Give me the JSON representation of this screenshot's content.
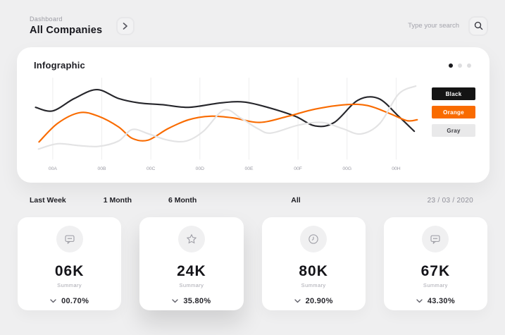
{
  "header": {
    "breadcrumb": "Dashboard",
    "title": "All Companies",
    "search_placeholder": "Type your search"
  },
  "infographic": {
    "title": "Infographic",
    "active_dot": 0,
    "legend": [
      {
        "label": "Black",
        "bg": "#141414",
        "text": "#ffffff"
      },
      {
        "label": "Orange",
        "bg": "#f96b00",
        "text": "#ffffff"
      },
      {
        "label": "Gray",
        "bg": "#e9e9ea",
        "text": "#3c3c42"
      }
    ]
  },
  "chart_data": {
    "type": "line",
    "title": "Infographic",
    "categories": [
      "00A",
      "00B",
      "00C",
      "00D",
      "00E",
      "00F",
      "00G",
      "00H"
    ],
    "xlabel": "",
    "ylabel": "",
    "ylim": [
      0,
      100
    ],
    "grid": "vertical",
    "legend_position": "right",
    "series": [
      {
        "name": "Black",
        "color": "#26262b",
        "points": [
          [
            -0.35,
            62
          ],
          [
            0,
            58
          ],
          [
            0.44,
            72
          ],
          [
            0.9,
            82
          ],
          [
            1.34,
            72
          ],
          [
            1.76,
            67
          ],
          [
            2.24,
            65
          ],
          [
            2.77,
            62
          ],
          [
            3.42,
            67
          ],
          [
            3.9,
            68
          ],
          [
            4.38,
            62
          ],
          [
            4.94,
            52
          ],
          [
            5.35,
            41
          ],
          [
            5.74,
            45
          ],
          [
            6.22,
            70
          ],
          [
            6.64,
            72
          ],
          [
            7.05,
            52
          ],
          [
            7.37,
            35
          ]
        ]
      },
      {
        "name": "Orange",
        "color": "#f96b00",
        "points": [
          [
            -0.28,
            23
          ],
          [
            0.1,
            44
          ],
          [
            0.55,
            56
          ],
          [
            0.93,
            52
          ],
          [
            1.34,
            40
          ],
          [
            1.62,
            27
          ],
          [
            1.94,
            25
          ],
          [
            2.35,
            38
          ],
          [
            2.77,
            48
          ],
          [
            3.21,
            52
          ],
          [
            3.69,
            50
          ],
          [
            4.22,
            45
          ],
          [
            4.8,
            52
          ],
          [
            5.35,
            60
          ],
          [
            5.97,
            65
          ],
          [
            6.42,
            64
          ],
          [
            6.87,
            55
          ],
          [
            7.22,
            47
          ],
          [
            7.43,
            48
          ]
        ]
      },
      {
        "name": "Gray",
        "color": "#e3e3e4",
        "points": [
          [
            -0.29,
            15
          ],
          [
            0.1,
            21
          ],
          [
            0.51,
            19
          ],
          [
            0.93,
            18
          ],
          [
            1.34,
            24
          ],
          [
            1.62,
            37
          ],
          [
            1.96,
            32
          ],
          [
            2.35,
            25
          ],
          [
            2.72,
            24
          ],
          [
            3.07,
            35
          ],
          [
            3.49,
            59
          ],
          [
            3.83,
            50
          ],
          [
            4.18,
            38
          ],
          [
            4.45,
            33
          ],
          [
            5.01,
            42
          ],
          [
            5.49,
            45
          ],
          [
            5.91,
            38
          ],
          [
            6.28,
            32
          ],
          [
            6.67,
            44
          ],
          [
            7.05,
            77
          ],
          [
            7.4,
            86
          ]
        ]
      }
    ]
  },
  "filters": {
    "tabs": [
      "Last Week",
      "1 Month",
      "6 Month",
      "All"
    ],
    "date": "23 / 03 / 2020"
  },
  "cards": [
    {
      "icon": "chat-icon",
      "value": "06K",
      "label": "Summary",
      "change": "00.70%"
    },
    {
      "icon": "star-icon",
      "value": "24K",
      "label": "Summary",
      "change": "35.80%",
      "elevated": true
    },
    {
      "icon": "clock-icon",
      "value": "80K",
      "label": "Summary",
      "change": "20.90%"
    },
    {
      "icon": "chat-icon",
      "value": "67K",
      "label": "Summary",
      "change": "43.30%"
    }
  ]
}
